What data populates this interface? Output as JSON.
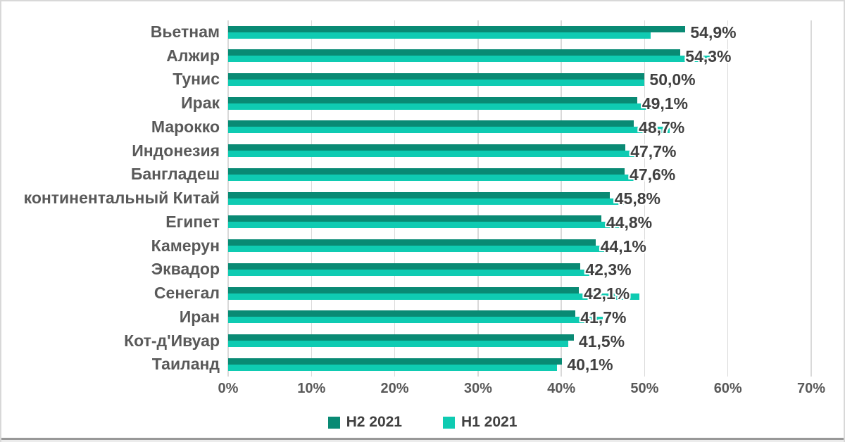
{
  "chart_data": {
    "type": "bar",
    "orientation": "horizontal",
    "title": "",
    "categories": [
      "Вьетнам",
      "Алжир",
      "Тунис",
      "Ирак",
      "Марокко",
      "Индонезия",
      "Бангладеш",
      "континентальный Китай",
      "Египет",
      "Камерун",
      "Эквадор",
      "Сенегал",
      "Иран",
      "Кот-д'Ивуар",
      "Таиланд"
    ],
    "series": [
      {
        "name": "H2 2021",
        "color": "#098A74",
        "values": [
          54.9,
          54.3,
          50.0,
          49.1,
          48.7,
          47.7,
          47.6,
          45.8,
          44.8,
          44.1,
          42.3,
          42.1,
          41.7,
          41.5,
          40.1
        ]
      },
      {
        "name": "H1 2021",
        "color": "#0FCBB2",
        "values": [
          50.7,
          58.2,
          50.0,
          51.1,
          53.0,
          49.0,
          49.2,
          48.3,
          47.2,
          45.3,
          44.5,
          49.4,
          45.0,
          40.8,
          39.5
        ]
      }
    ],
    "value_labels": [
      "54,9%",
      "54,3%",
      "50,0%",
      "49,1%",
      "48,7%",
      "47,7%",
      "47,6%",
      "45,8%",
      "44,8%",
      "44,1%",
      "42,3%",
      "42,1%",
      "41,7%",
      "41,5%",
      "40,1%"
    ],
    "value_labels_for_series": "H2 2021",
    "x_ticks": [
      "0%",
      "10%",
      "20%",
      "30%",
      "40%",
      "50%",
      "60%",
      "70%"
    ],
    "xlim": [
      0,
      70
    ],
    "grid": "vertical-gridlines-on",
    "legend_position": "bottom",
    "colors": {
      "gridline": "#d9d9d9",
      "category_label_text": "#595959",
      "value_label_text": "#404040",
      "axis_tick_text": "#595959",
      "legend_text": "#404040",
      "background": "#ffffff"
    }
  }
}
